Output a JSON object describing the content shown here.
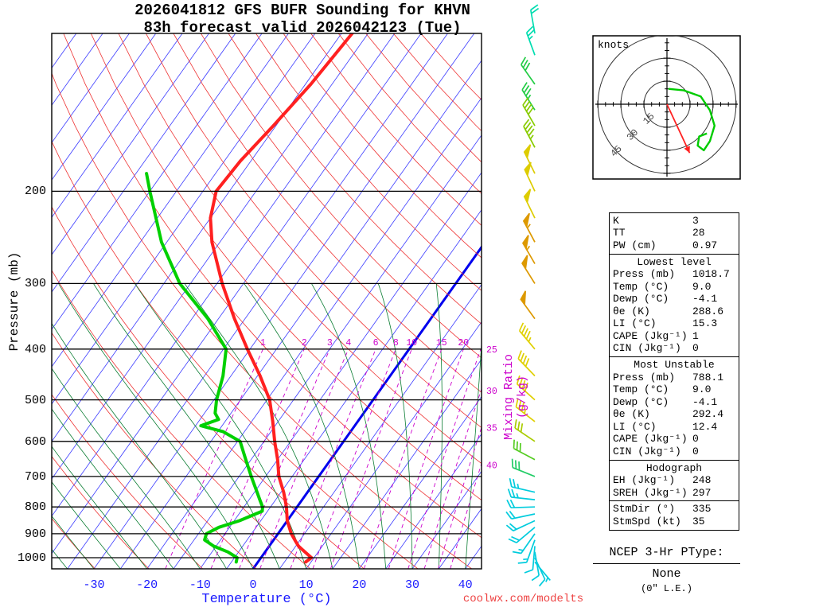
{
  "header": {
    "title_line1": "2026041812 GFS BUFR Sounding for KHVN",
    "title_line2": "83h forecast valid 2026042123 (Tue)"
  },
  "axes": {
    "pressure_label": "Pressure (mb)",
    "temperature_label": "Temperature (°C)",
    "mixing_ratio_label": "Mixing Ratio (g/kg)",
    "pressure_ticks": [
      200,
      300,
      400,
      500,
      600,
      700,
      800,
      900,
      1000
    ],
    "temperature_ticks": [
      -30,
      -20,
      -10,
      0,
      10,
      20,
      30,
      40
    ]
  },
  "hodograph": {
    "units_label": "knots",
    "ring_labels": [
      15,
      30,
      45
    ]
  },
  "indices": {
    "top": [
      [
        "K",
        "3"
      ],
      [
        "TT",
        "28"
      ],
      [
        "PW (cm)",
        "0.97"
      ]
    ],
    "sections": [
      {
        "title": "Lowest level",
        "rows": [
          [
            "Press (mb)",
            "1018.7"
          ],
          [
            "Temp (°C)",
            "9.0"
          ],
          [
            "Dewp (°C)",
            "-4.1"
          ],
          [
            "θe (K)",
            "288.6"
          ],
          [
            "LI (°C)",
            "15.3"
          ],
          [
            "CAPE (Jkg⁻¹)",
            "1"
          ],
          [
            "CIN (Jkg⁻¹)",
            "0"
          ]
        ]
      },
      {
        "title": "Most Unstable",
        "rows": [
          [
            "Press (mb)",
            "788.1"
          ],
          [
            "Temp (°C)",
            "9.0"
          ],
          [
            "Dewp (°C)",
            "-4.1"
          ],
          [
            "θe (K)",
            "292.4"
          ],
          [
            "LI (°C)",
            "12.4"
          ],
          [
            "CAPE (Jkg⁻¹)",
            "0"
          ],
          [
            "CIN (Jkg⁻¹)",
            "0"
          ]
        ]
      },
      {
        "title": "Hodograph",
        "rows": [
          [
            "EH (Jkg⁻¹)",
            "248"
          ],
          [
            "SREH (Jkg⁻¹)",
            "297"
          ]
        ],
        "rows2": [
          [
            "StmDir (°)",
            "335"
          ],
          [
            "StmSpd (kt)",
            "35"
          ]
        ]
      }
    ]
  },
  "ptype": {
    "title": "NCEP 3-Hr PType:",
    "value": "None",
    "le": "(0\" L.E.)"
  },
  "watermark": "coolwx.com/modelts",
  "chart_data": {
    "type": "skewt-logp",
    "title": "2026041812 GFS BUFR Sounding for KHVN",
    "subtitle": "83h forecast valid 2026042123 (Tue)",
    "pressure_range_mb": [
      100,
      1050
    ],
    "temp_axis_range_c": [
      -38,
      43
    ],
    "isobars_mb": [
      200,
      300,
      400,
      500,
      600,
      700,
      800,
      900,
      1000
    ],
    "isotherm_step_c": 5,
    "dry_adiabat_step_K": 10,
    "moist_adiabats_c": {
      "min": -40,
      "max": 40,
      "step": 5
    },
    "mixing_ratio_lines_gkg": [
      1,
      2,
      3,
      4,
      6,
      8,
      10,
      15,
      20,
      25,
      30,
      35,
      40
    ],
    "mixing_ratio_top_p_mb": 400,
    "temperature_profile_p_c": [
      [
        1019,
        9.0
      ],
      [
        1000,
        9.5
      ],
      [
        975,
        7.5
      ],
      [
        950,
        5.5
      ],
      [
        925,
        4.0
      ],
      [
        900,
        2.5
      ],
      [
        850,
        0.0
      ],
      [
        800,
        -2.0
      ],
      [
        750,
        -4.5
      ],
      [
        700,
        -7.5
      ],
      [
        650,
        -10.0
      ],
      [
        600,
        -13.0
      ],
      [
        550,
        -16.0
      ],
      [
        500,
        -19.5
      ],
      [
        450,
        -24.5
      ],
      [
        400,
        -30.5
      ],
      [
        350,
        -37.0
      ],
      [
        300,
        -44.0
      ],
      [
        250,
        -51.5
      ],
      [
        225,
        -55.0
      ],
      [
        200,
        -57.5
      ],
      [
        175,
        -57.0
      ],
      [
        150,
        -55.5
      ],
      [
        125,
        -54.0
      ],
      [
        100,
        -53.0
      ]
    ],
    "dewpoint_profile_p_c": [
      [
        1019,
        -4.1
      ],
      [
        1000,
        -4.5
      ],
      [
        975,
        -7.0
      ],
      [
        950,
        -10.5
      ],
      [
        925,
        -13.0
      ],
      [
        900,
        -13.5
      ],
      [
        875,
        -12.0
      ],
      [
        850,
        -9.0
      ],
      [
        815,
        -6.0
      ],
      [
        800,
        -6.5
      ],
      [
        775,
        -8.0
      ],
      [
        750,
        -9.5
      ],
      [
        700,
        -12.7
      ],
      [
        650,
        -16.0
      ],
      [
        600,
        -19.5
      ],
      [
        575,
        -24.0
      ],
      [
        560,
        -29.0
      ],
      [
        545,
        -26.5
      ],
      [
        530,
        -28.0
      ],
      [
        500,
        -29.5
      ],
      [
        450,
        -31.5
      ],
      [
        400,
        -34.5
      ],
      [
        350,
        -42.0
      ],
      [
        300,
        -52.0
      ],
      [
        250,
        -61.0
      ],
      [
        200,
        -70.0
      ],
      [
        185,
        -73.0
      ]
    ],
    "wind_barbs": [
      {
        "p": 100,
        "dir": 350,
        "spd": 22,
        "color": "#00ddb0"
      },
      {
        "p": 110,
        "dir": 340,
        "spd": 25,
        "color": "#00ddb0"
      },
      {
        "p": 125,
        "dir": 325,
        "spd": 30,
        "color": "#22cc44"
      },
      {
        "p": 140,
        "dir": 328,
        "spd": 35,
        "color": "#22cc44"
      },
      {
        "p": 150,
        "dir": 330,
        "spd": 40,
        "color": "#88cc00"
      },
      {
        "p": 165,
        "dir": 332,
        "spd": 45,
        "color": "#88cc00"
      },
      {
        "p": 185,
        "dir": 334,
        "spd": 48,
        "color": "#ddcc00"
      },
      {
        "p": 200,
        "dir": 335,
        "spd": 50,
        "color": "#ddcc00"
      },
      {
        "p": 225,
        "dir": 334,
        "spd": 52,
        "color": "#ddcc00"
      },
      {
        "p": 250,
        "dir": 332,
        "spd": 55,
        "color": "#dd9900"
      },
      {
        "p": 275,
        "dir": 330,
        "spd": 55,
        "color": "#dd9900"
      },
      {
        "p": 300,
        "dir": 328,
        "spd": 52,
        "color": "#dd9900"
      },
      {
        "p": 350,
        "dir": 324,
        "spd": 48,
        "color": "#dd9900"
      },
      {
        "p": 400,
        "dir": 320,
        "spd": 45,
        "color": "#e0d000"
      },
      {
        "p": 450,
        "dir": 316,
        "spd": 42,
        "color": "#e0d000"
      },
      {
        "p": 500,
        "dir": 312,
        "spd": 38,
        "color": "#e0d000"
      },
      {
        "p": 550,
        "dir": 308,
        "spd": 35,
        "color": "#e0d000"
      },
      {
        "p": 600,
        "dir": 304,
        "spd": 32,
        "color": "#aacc00"
      },
      {
        "p": 650,
        "dir": 298,
        "spd": 30,
        "color": "#55cc22"
      },
      {
        "p": 700,
        "dir": 292,
        "spd": 28,
        "color": "#22cc66"
      },
      {
        "p": 750,
        "dir": 283,
        "spd": 25,
        "color": "#00ccdd"
      },
      {
        "p": 775,
        "dir": 276,
        "spd": 25,
        "color": "#00ccdd"
      },
      {
        "p": 800,
        "dir": 268,
        "spd": 22,
        "color": "#00ccdd"
      },
      {
        "p": 825,
        "dir": 258,
        "spd": 20,
        "color": "#00ccdd"
      },
      {
        "p": 850,
        "dir": 245,
        "spd": 20,
        "color": "#00ccdd"
      },
      {
        "p": 875,
        "dir": 230,
        "spd": 18,
        "color": "#00ccdd"
      },
      {
        "p": 900,
        "dir": 215,
        "spd": 15,
        "color": "#00ccdd"
      },
      {
        "p": 925,
        "dir": 200,
        "spd": 15,
        "color": "#00ccdd"
      },
      {
        "p": 950,
        "dir": 185,
        "spd": 12,
        "color": "#00ccdd"
      },
      {
        "p": 975,
        "dir": 170,
        "spd": 10,
        "color": "#00ccdd"
      },
      {
        "p": 1000,
        "dir": 155,
        "spd": 8,
        "color": "#00ccdd"
      },
      {
        "p": 1019,
        "dir": 140,
        "spd": 5,
        "color": "#00ccdd"
      }
    ],
    "hodograph_trace_uv_kt": [
      [
        1,
        10
      ],
      [
        11,
        9
      ],
      [
        22,
        5
      ],
      [
        28,
        -4
      ],
      [
        31,
        -14
      ],
      [
        28,
        -24
      ],
      [
        24,
        -30
      ],
      [
        20,
        -27
      ],
      [
        21,
        -21
      ],
      [
        26,
        -19
      ]
    ],
    "storm_motion": {
      "dir_deg": 335,
      "spd_kt": 35
    },
    "colors": {
      "isotherm": "#3b3bff",
      "freezing_line": "#0000ee",
      "dry_adiabat": "#ee3333",
      "moist_adiabat": "#0b7d33",
      "mixing_ratio": "#cc00cc",
      "isobar": "#000000",
      "temperature_curve": "#ff2020",
      "dewpoint_curve": "#00d000",
      "hodograph_trace": "#00cc00",
      "storm_motion_arrow": "#ff2222",
      "temp_axis_text": "#1a1aff",
      "watermark_text": "#ee4444"
    }
  }
}
